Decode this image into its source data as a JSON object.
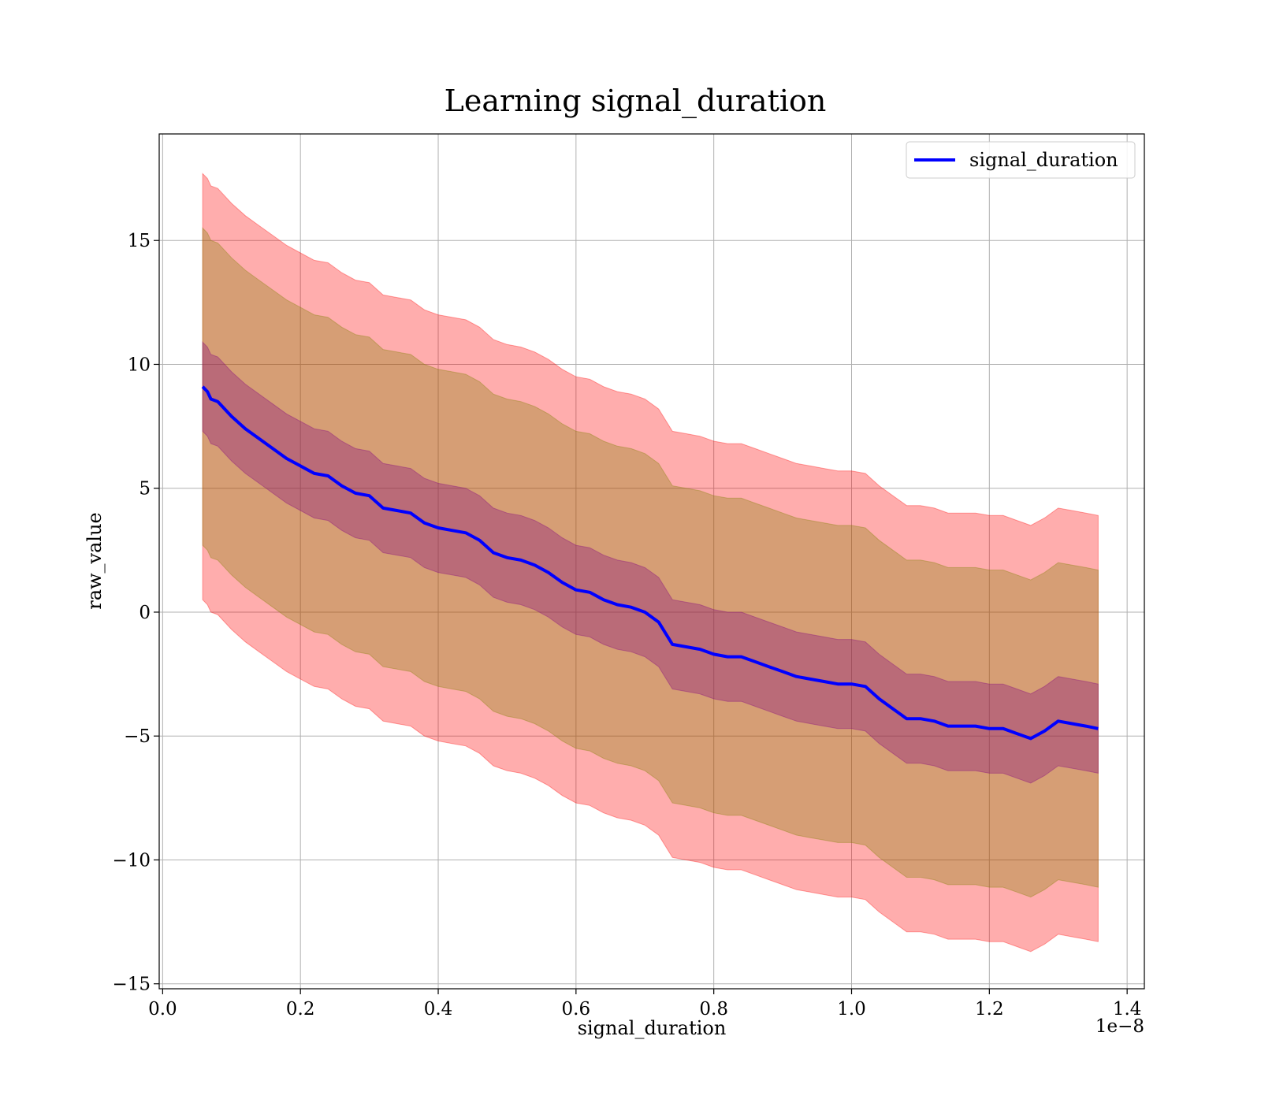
{
  "chart_data": {
    "type": "line",
    "title": "Learning signal_duration",
    "xlabel": "signal_duration",
    "ylabel": "raw_value",
    "x_offset_label": "1e−8",
    "xlim": [
      -0.005,
      1.425
    ],
    "ylim": [
      -15.2,
      19.3
    ],
    "x_ticks": [
      0.0,
      0.2,
      0.4,
      0.6,
      0.8,
      1.0,
      1.2,
      1.4
    ],
    "x_tick_labels": [
      "0.0",
      "0.2",
      "0.4",
      "0.6",
      "0.8",
      "1.0",
      "1.2",
      "1.4"
    ],
    "y_ticks": [
      -15,
      -10,
      -5,
      0,
      5,
      10,
      15
    ],
    "y_tick_labels": [
      "−15",
      "−10",
      "−5",
      "0",
      "5",
      "10",
      "15"
    ],
    "grid": true,
    "legend_position": "top-right",
    "series": [
      {
        "name": "signal_duration",
        "color": "#0000ff",
        "x": [
          0.058,
          0.065,
          0.07,
          0.08,
          0.1,
          0.12,
          0.14,
          0.16,
          0.18,
          0.2,
          0.22,
          0.24,
          0.26,
          0.28,
          0.3,
          0.32,
          0.34,
          0.36,
          0.38,
          0.4,
          0.42,
          0.44,
          0.46,
          0.48,
          0.5,
          0.52,
          0.54,
          0.56,
          0.58,
          0.6,
          0.62,
          0.64,
          0.66,
          0.68,
          0.7,
          0.72,
          0.74,
          0.76,
          0.78,
          0.8,
          0.82,
          0.84,
          0.86,
          0.88,
          0.9,
          0.92,
          0.94,
          0.96,
          0.98,
          1.0,
          1.02,
          1.04,
          1.06,
          1.08,
          1.1,
          1.12,
          1.14,
          1.16,
          1.18,
          1.2,
          1.22,
          1.24,
          1.26,
          1.28,
          1.3,
          1.32,
          1.34,
          1.358
        ],
        "values": [
          9.1,
          8.9,
          8.6,
          8.5,
          7.9,
          7.4,
          7.0,
          6.6,
          6.2,
          5.9,
          5.6,
          5.5,
          5.1,
          4.8,
          4.7,
          4.2,
          4.1,
          4.0,
          3.6,
          3.4,
          3.3,
          3.2,
          2.9,
          2.4,
          2.2,
          2.1,
          1.9,
          1.6,
          1.2,
          0.9,
          0.8,
          0.5,
          0.3,
          0.2,
          0.0,
          -0.4,
          -1.3,
          -1.4,
          -1.5,
          -1.7,
          -1.8,
          -1.8,
          -2.0,
          -2.2,
          -2.4,
          -2.6,
          -2.7,
          -2.8,
          -2.9,
          -2.9,
          -3.0,
          -3.5,
          -3.9,
          -4.3,
          -4.3,
          -4.4,
          -4.6,
          -4.6,
          -4.6,
          -4.7,
          -4.7,
          -4.9,
          -5.1,
          -4.8,
          -4.4,
          -4.5,
          -4.6,
          -4.7
        ],
        "inner_band": {
          "color": "#800080",
          "lower": [
            7.3,
            7.1,
            6.8,
            6.7,
            6.1,
            5.6,
            5.2,
            4.8,
            4.4,
            4.1,
            3.8,
            3.7,
            3.3,
            3.0,
            2.9,
            2.4,
            2.3,
            2.2,
            1.8,
            1.6,
            1.5,
            1.4,
            1.1,
            0.6,
            0.4,
            0.3,
            0.1,
            -0.2,
            -0.6,
            -0.9,
            -1.0,
            -1.3,
            -1.5,
            -1.6,
            -1.8,
            -2.2,
            -3.1,
            -3.2,
            -3.3,
            -3.5,
            -3.6,
            -3.6,
            -3.8,
            -4.0,
            -4.2,
            -4.4,
            -4.5,
            -4.6,
            -4.7,
            -4.7,
            -4.8,
            -5.3,
            -5.7,
            -6.1,
            -6.1,
            -6.2,
            -6.4,
            -6.4,
            -6.4,
            -6.5,
            -6.5,
            -6.7,
            -6.9,
            -6.6,
            -6.2,
            -6.3,
            -6.4,
            -6.5
          ],
          "upper": [
            10.9,
            10.7,
            10.4,
            10.3,
            9.7,
            9.2,
            8.8,
            8.4,
            8.0,
            7.7,
            7.4,
            7.3,
            6.9,
            6.6,
            6.5,
            6.0,
            5.9,
            5.8,
            5.4,
            5.2,
            5.1,
            5.0,
            4.7,
            4.2,
            4.0,
            3.9,
            3.7,
            3.4,
            3.0,
            2.7,
            2.6,
            2.3,
            2.1,
            2.0,
            1.8,
            1.4,
            0.5,
            0.4,
            0.3,
            0.1,
            0.0,
            0.0,
            -0.2,
            -0.4,
            -0.6,
            -0.8,
            -0.9,
            -1.0,
            -1.1,
            -1.1,
            -1.2,
            -1.7,
            -2.1,
            -2.5,
            -2.5,
            -2.6,
            -2.8,
            -2.8,
            -2.8,
            -2.9,
            -2.9,
            -3.1,
            -3.3,
            -3.0,
            -2.6,
            -2.7,
            -2.8,
            -2.9
          ]
        },
        "middle_band": {
          "color": "#808000",
          "lower": [
            2.7,
            2.5,
            2.2,
            2.1,
            1.5,
            1.0,
            0.6,
            0.2,
            -0.2,
            -0.5,
            -0.8,
            -0.9,
            -1.3,
            -1.6,
            -1.7,
            -2.2,
            -2.3,
            -2.4,
            -2.8,
            -3.0,
            -3.1,
            -3.2,
            -3.5,
            -4.0,
            -4.2,
            -4.3,
            -4.5,
            -4.8,
            -5.2,
            -5.5,
            -5.6,
            -5.9,
            -6.1,
            -6.2,
            -6.4,
            -6.8,
            -7.7,
            -7.8,
            -7.9,
            -8.1,
            -8.2,
            -8.2,
            -8.4,
            -8.6,
            -8.8,
            -9.0,
            -9.1,
            -9.2,
            -9.3,
            -9.3,
            -9.4,
            -9.9,
            -10.3,
            -10.7,
            -10.7,
            -10.8,
            -11.0,
            -11.0,
            -11.0,
            -11.1,
            -11.1,
            -11.3,
            -11.5,
            -11.2,
            -10.8,
            -10.9,
            -11.0,
            -11.1
          ],
          "upper": [
            15.5,
            15.3,
            15.0,
            14.9,
            14.3,
            13.8,
            13.4,
            13.0,
            12.6,
            12.3,
            12.0,
            11.9,
            11.5,
            11.2,
            11.1,
            10.6,
            10.5,
            10.4,
            10.0,
            9.8,
            9.7,
            9.6,
            9.3,
            8.8,
            8.6,
            8.5,
            8.3,
            8.0,
            7.6,
            7.3,
            7.2,
            6.9,
            6.7,
            6.6,
            6.4,
            6.0,
            5.1,
            5.0,
            4.9,
            4.7,
            4.6,
            4.6,
            4.4,
            4.2,
            4.0,
            3.8,
            3.7,
            3.6,
            3.5,
            3.5,
            3.4,
            2.9,
            2.5,
            2.1,
            2.1,
            2.0,
            1.8,
            1.8,
            1.8,
            1.7,
            1.7,
            1.5,
            1.3,
            1.6,
            2.0,
            1.9,
            1.8,
            1.7
          ]
        },
        "outer_band": {
          "color": "#ff0000",
          "lower": [
            0.5,
            0.3,
            0.0,
            -0.1,
            -0.7,
            -1.2,
            -1.6,
            -2.0,
            -2.4,
            -2.7,
            -3.0,
            -3.1,
            -3.5,
            -3.8,
            -3.9,
            -4.4,
            -4.5,
            -4.6,
            -5.0,
            -5.2,
            -5.3,
            -5.4,
            -5.7,
            -6.2,
            -6.4,
            -6.5,
            -6.7,
            -7.0,
            -7.4,
            -7.7,
            -7.8,
            -8.1,
            -8.3,
            -8.4,
            -8.6,
            -9.0,
            -9.9,
            -10.0,
            -10.1,
            -10.3,
            -10.4,
            -10.4,
            -10.6,
            -10.8,
            -11.0,
            -11.2,
            -11.3,
            -11.4,
            -11.5,
            -11.5,
            -11.6,
            -12.1,
            -12.5,
            -12.9,
            -12.9,
            -13.0,
            -13.2,
            -13.2,
            -13.2,
            -13.3,
            -13.3,
            -13.5,
            -13.7,
            -13.4,
            -13.0,
            -13.1,
            -13.2,
            -13.3
          ],
          "upper": [
            17.7,
            17.5,
            17.2,
            17.1,
            16.5,
            16.0,
            15.6,
            15.2,
            14.8,
            14.5,
            14.2,
            14.1,
            13.7,
            13.4,
            13.3,
            12.8,
            12.7,
            12.6,
            12.2,
            12.0,
            11.9,
            11.8,
            11.5,
            11.0,
            10.8,
            10.7,
            10.5,
            10.2,
            9.8,
            9.5,
            9.4,
            9.1,
            8.9,
            8.8,
            8.6,
            8.2,
            7.3,
            7.2,
            7.1,
            6.9,
            6.8,
            6.8,
            6.6,
            6.4,
            6.2,
            6.0,
            5.9,
            5.8,
            5.7,
            5.7,
            5.6,
            5.1,
            4.7,
            4.3,
            4.3,
            4.2,
            4.0,
            4.0,
            4.0,
            3.9,
            3.9,
            3.7,
            3.5,
            3.8,
            4.2,
            4.1,
            4.0,
            3.9
          ]
        }
      }
    ]
  }
}
